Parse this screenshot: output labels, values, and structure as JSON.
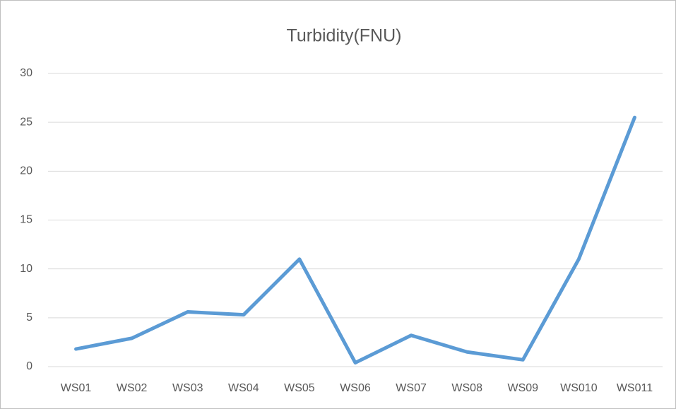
{
  "chart_data": {
    "type": "line",
    "title": "Turbidity(FNU)",
    "categories": [
      "WS01",
      "WS02",
      "WS03",
      "WS04",
      "WS05",
      "WS06",
      "WS07",
      "WS08",
      "WS09",
      "WS010",
      "WS011"
    ],
    "values": [
      1.8,
      2.9,
      5.6,
      5.3,
      11,
      0.4,
      3.2,
      1.5,
      0.7,
      11,
      25.5
    ],
    "color": "#5b9bd5",
    "ylim": [
      0,
      30
    ],
    "yticks": [
      0,
      5,
      10,
      15,
      20,
      25,
      30
    ],
    "grid": true
  }
}
